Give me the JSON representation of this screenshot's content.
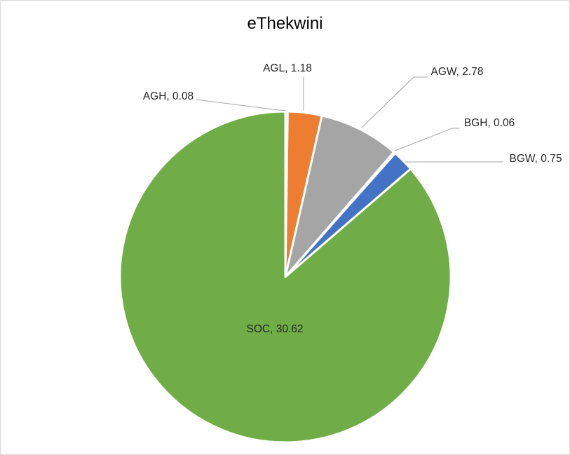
{
  "chart_data": {
    "type": "pie",
    "title": "eThekwini",
    "unit": "",
    "slices": [
      {
        "label": "AGH",
        "value": 0.08,
        "display": "AGH, 0.08",
        "color": "#4472c4"
      },
      {
        "label": "AGL",
        "value": 1.18,
        "display": "AGL, 1.18",
        "color": "#ed7d31"
      },
      {
        "label": "AGW",
        "value": 2.78,
        "display": "AGW, 2.78",
        "color": "#a5a5a5"
      },
      {
        "label": "BGH",
        "value": 0.06,
        "display": "BGH, 0.06",
        "color": "#ffc000"
      },
      {
        "label": "BGW",
        "value": 0.75,
        "display": "BGW, 0.75",
        "color": "#4472c4"
      },
      {
        "label": "SOC",
        "value": 30.62,
        "display": "SOC, 30.62",
        "color": "#70ad47"
      }
    ],
    "legend": false
  }
}
